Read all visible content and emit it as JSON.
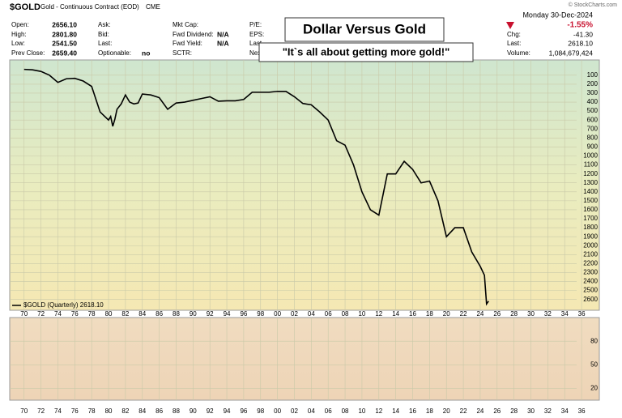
{
  "header": {
    "symbol": "$GOLD",
    "description": "Gold - Continuous Contract (EOD)",
    "exchange": "CME",
    "copyright": "© StockCharts.com",
    "date": "Monday  30-Dec-2024",
    "change_percent": "-1.55%",
    "fields": [
      [
        {
          "label": "Open:",
          "value": "2656.10"
        },
        {
          "label": "High:",
          "value": "2801.80"
        },
        {
          "label": "Low:",
          "value": "2541.50"
        },
        {
          "label": "Prev Close:",
          "value": "2659.40"
        }
      ],
      [
        {
          "label": "Ask:"
        },
        {
          "label": "Bid:"
        },
        {
          "label": "Last:"
        },
        {
          "label": "Optionable:",
          "value": "no"
        }
      ],
      [
        {
          "label": "Mkt Cap:"
        },
        {
          "label": "Fwd Dividend:",
          "value": "N/A"
        },
        {
          "label": "Fwd Yield:",
          "value": "N/A"
        },
        {
          "label": "SCTR:"
        }
      ],
      [
        {
          "label": "P/E:"
        },
        {
          "label": "EPS:"
        },
        {
          "label": "Last"
        },
        {
          "label": "Next"
        }
      ]
    ],
    "right_fields": [
      {
        "label": "Chg:",
        "value": "-41.30"
      },
      {
        "label": "Last:",
        "value": "2618.10"
      },
      {
        "label": "Volume:",
        "value": "1,084,679,424"
      }
    ]
  },
  "chart_data": [
    {
      "type": "line",
      "grid": true,
      "inverted": true,
      "annotations": [
        "Dollar Versus Gold",
        "\"It`s all about getting more gold!\""
      ],
      "xlim": [
        1968.3,
        2038.1
      ],
      "xticks": [
        {
          "value": 1970,
          "label": "70"
        },
        {
          "value": 1972,
          "label": "72"
        },
        {
          "value": 1974,
          "label": "74"
        },
        {
          "value": 1976,
          "label": "76"
        },
        {
          "value": 1978,
          "label": "78"
        },
        {
          "value": 1980,
          "label": "80"
        },
        {
          "value": 1982,
          "label": "82"
        },
        {
          "value": 1984,
          "label": "84"
        },
        {
          "value": 1986,
          "label": "86"
        },
        {
          "value": 1988,
          "label": "88"
        },
        {
          "value": 1990,
          "label": "90"
        },
        {
          "value": 1992,
          "label": "92"
        },
        {
          "value": 1994,
          "label": "94"
        },
        {
          "value": 1996,
          "label": "96"
        },
        {
          "value": 1998,
          "label": "98"
        },
        {
          "value": 2000,
          "label": "00"
        },
        {
          "value": 2002,
          "label": "02"
        },
        {
          "value": 2004,
          "label": "04"
        },
        {
          "value": 2006,
          "label": "06"
        },
        {
          "value": 2008,
          "label": "08"
        },
        {
          "value": 2010,
          "label": "10"
        },
        {
          "value": 2012,
          "label": "12"
        },
        {
          "value": 2014,
          "label": "14"
        },
        {
          "value": 2016,
          "label": "16"
        },
        {
          "value": 2018,
          "label": "18"
        },
        {
          "value": 2020,
          "label": "20"
        },
        {
          "value": 2022,
          "label": "22"
        },
        {
          "value": 2024,
          "label": "24"
        },
        {
          "value": 2026,
          "label": "26"
        },
        {
          "value": 2028,
          "label": "28"
        },
        {
          "value": 2030,
          "label": "30"
        },
        {
          "value": 2032,
          "label": "32"
        },
        {
          "value": 2034,
          "label": "34"
        },
        {
          "value": 2036,
          "label": "36"
        }
      ],
      "ylim": [
        -70,
        2720
      ],
      "yticks": [
        100,
        200,
        300,
        400,
        500,
        600,
        700,
        800,
        900,
        1000,
        1100,
        1200,
        1300,
        1400,
        1500,
        1600,
        1700,
        1800,
        1900,
        2000,
        2100,
        2200,
        2300,
        2400,
        2500,
        2600
      ],
      "x": [
        1970,
        1971,
        1972,
        1973,
        1974,
        1975,
        1976,
        1977,
        1978,
        1979,
        1980,
        1980.25,
        1980.5,
        1980.75,
        1981,
        1981.5,
        1982,
        1982.5,
        1983,
        1983.5,
        1984,
        1985,
        1986,
        1987,
        1988,
        1989,
        1990,
        1991,
        1992,
        1993,
        1994,
        1995,
        1996,
        1997,
        1998,
        1999,
        2000,
        2001,
        2002,
        2003,
        2004,
        2005,
        2006,
        2007,
        2008,
        2009,
        2010,
        2011,
        2012,
        2013,
        2014,
        2015,
        2016,
        2017,
        2018,
        2019,
        2020,
        2021,
        2022,
        2023,
        2024,
        2024.5,
        2024.75,
        2024.99
      ],
      "series": [
        {
          "name": "$GOLD (Quarterly) 2618.10",
          "color": "#000000",
          "values": [
            35,
            40,
            58,
            100,
            180,
            140,
            135,
            165,
            225,
            510,
            600,
            560,
            670,
            590,
            480,
            420,
            320,
            400,
            420,
            410,
            310,
            320,
            350,
            480,
            410,
            400,
            380,
            360,
            340,
            390,
            385,
            385,
            370,
            290,
            290,
            290,
            280,
            280,
            340,
            415,
            430,
            510,
            600,
            830,
            880,
            1100,
            1400,
            1600,
            1660,
            1200,
            1200,
            1060,
            1150,
            1300,
            1280,
            1500,
            1900,
            1800,
            1800,
            2070,
            2230,
            2330,
            2650,
            2618
          ]
        }
      ]
    },
    {
      "type": "line",
      "grid": true,
      "xlim": [
        1968.3,
        2038.1
      ],
      "xticks": [
        {
          "value": 1970,
          "label": "70"
        },
        {
          "value": 1972,
          "label": "72"
        },
        {
          "value": 1974,
          "label": "74"
        },
        {
          "value": 1976,
          "label": "76"
        },
        {
          "value": 1978,
          "label": "78"
        },
        {
          "value": 1980,
          "label": "80"
        },
        {
          "value": 1982,
          "label": "82"
        },
        {
          "value": 1984,
          "label": "84"
        },
        {
          "value": 1986,
          "label": "86"
        },
        {
          "value": 1988,
          "label": "88"
        },
        {
          "value": 1990,
          "label": "90"
        },
        {
          "value": 1992,
          "label": "92"
        },
        {
          "value": 1994,
          "label": "94"
        },
        {
          "value": 1996,
          "label": "96"
        },
        {
          "value": 1998,
          "label": "98"
        },
        {
          "value": 2000,
          "label": "00"
        },
        {
          "value": 2002,
          "label": "02"
        },
        {
          "value": 2004,
          "label": "04"
        },
        {
          "value": 2006,
          "label": "06"
        },
        {
          "value": 2008,
          "label": "08"
        },
        {
          "value": 2010,
          "label": "10"
        },
        {
          "value": 2012,
          "label": "12"
        },
        {
          "value": 2014,
          "label": "14"
        },
        {
          "value": 2016,
          "label": "16"
        },
        {
          "value": 2018,
          "label": "18"
        },
        {
          "value": 2020,
          "label": "20"
        },
        {
          "value": 2022,
          "label": "22"
        },
        {
          "value": 2024,
          "label": "24"
        },
        {
          "value": 2026,
          "label": "26"
        },
        {
          "value": 2028,
          "label": "28"
        },
        {
          "value": 2030,
          "label": "30"
        },
        {
          "value": 2032,
          "label": "32"
        },
        {
          "value": 2034,
          "label": "34"
        },
        {
          "value": 2036,
          "label": "36"
        }
      ],
      "ylim": [
        5,
        110
      ],
      "yticks": [
        20,
        50,
        80
      ]
    }
  ]
}
